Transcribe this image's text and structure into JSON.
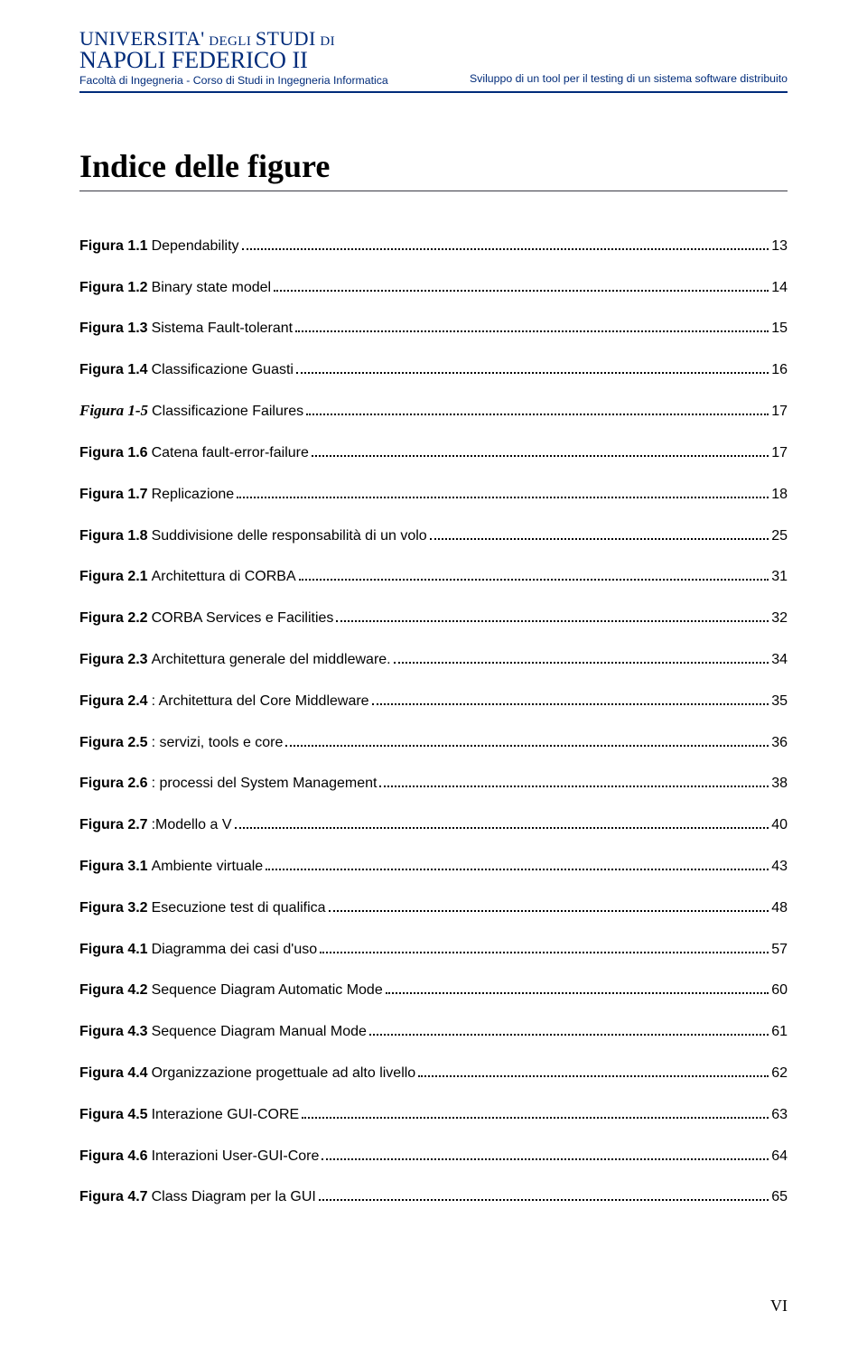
{
  "header": {
    "university_upper": "UNIVERSITA'",
    "university_degli": "DEGLI",
    "university_studi": "STUDI",
    "university_di": "DI",
    "university_name": "NAPOLI FEDERICO II",
    "faculty": "Facoltà di Ingegneria - Corso di Studi in Ingegneria Informatica",
    "doc_title": "Sviluppo di un tool per il testing di un sistema software distribuito"
  },
  "title": "Indice delle figure",
  "entries": [
    {
      "label": "Figura 1.1",
      "text": " Dependability",
      "page": "13",
      "italic": false
    },
    {
      "label": "Figura 1.2",
      "text": " Binary state model",
      "page": "14",
      "italic": false
    },
    {
      "label": "Figura 1.3",
      "text": " Sistema Fault-tolerant",
      "page": "15",
      "italic": false
    },
    {
      "label": "Figura 1.4",
      "text": " Classificazione Guasti",
      "page": "16",
      "italic": false
    },
    {
      "label": "Figura 1-5",
      "text": "  Classificazione Failures",
      "page": "17",
      "italic": true
    },
    {
      "label": "Figura 1.6",
      "text": " Catena fault-error-failure",
      "page": "17",
      "italic": false
    },
    {
      "label": "Figura 1.7",
      "text": " Replicazione",
      "page": "18",
      "italic": false
    },
    {
      "label": "Figura 1.8",
      "text": " Suddivisione delle responsabilità di un volo",
      "page": "25",
      "italic": false
    },
    {
      "label": "Figura 2.1",
      "text": " Architettura di CORBA",
      "page": "31",
      "italic": false
    },
    {
      "label": "Figura 2.2",
      "text": " CORBA Services e Facilities",
      "page": "32",
      "italic": false
    },
    {
      "label": "Figura 2.3",
      "text": " Architettura generale del middleware. ",
      "page": "34",
      "italic": false
    },
    {
      "label": "Figura 2.4",
      "text": ": Architettura del Core Middleware",
      "page": "35",
      "italic": false
    },
    {
      "label": "Figura 2.5",
      "text": ": servizi, tools e core",
      "page": "36",
      "italic": false
    },
    {
      "label": "Figura 2.6",
      "text": " : processi del System Management",
      "page": "38",
      "italic": false
    },
    {
      "label": "Figura 2.7",
      "text": " :Modello a V",
      "page": "40",
      "italic": false
    },
    {
      "label": "Figura 3.1",
      "text": " Ambiente virtuale",
      "page": "43",
      "italic": false
    },
    {
      "label": "Figura 3.2",
      "text": " Esecuzione test di qualifica",
      "page": "48",
      "italic": false
    },
    {
      "label": "Figura 4.1",
      "text": "  Diagramma dei casi d'uso",
      "page": "57",
      "italic": false
    },
    {
      "label": "Figura 4.2",
      "text": "  Sequence Diagram Automatic Mode",
      "page": "60",
      "italic": false
    },
    {
      "label": "Figura 4.3",
      "text": " Sequence Diagram Manual Mode",
      "page": "61",
      "italic": false
    },
    {
      "label": "Figura 4.4",
      "text": "  Organizzazione progettuale ad alto livello",
      "page": "62",
      "italic": false
    },
    {
      "label": "Figura 4.5",
      "text": "  Interazione GUI-CORE ",
      "page": "63",
      "italic": false
    },
    {
      "label": "Figura 4.6",
      "text": "  Interazioni User-GUI-Core",
      "page": "64",
      "italic": false
    },
    {
      "label": "Figura 4.7",
      "text": " Class Diagram  per la GUI ",
      "page": "65",
      "italic": false
    }
  ],
  "footer": "VI"
}
